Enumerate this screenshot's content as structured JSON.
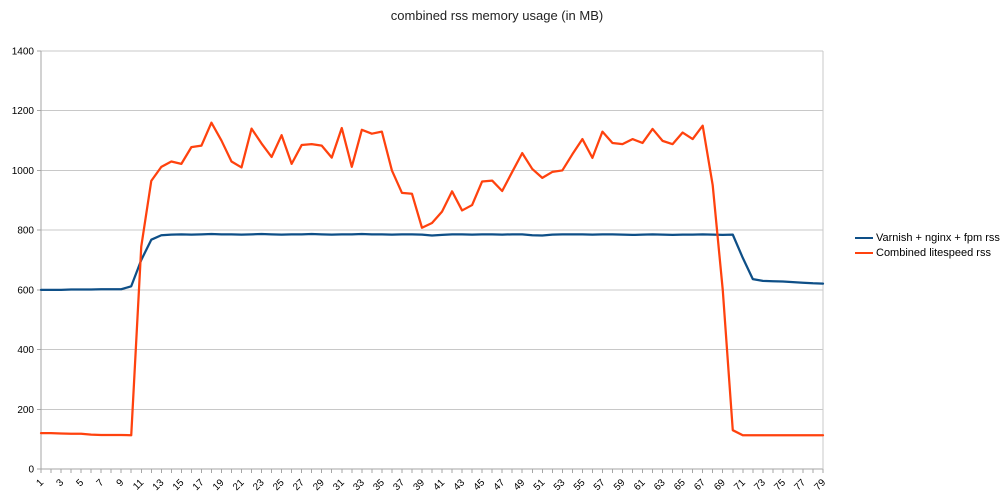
{
  "title": "combined rss memory usage (in MB)",
  "legend": {
    "items": [
      {
        "label": "Varnish + nginx + fpm rss",
        "color": "#0e4f87"
      },
      {
        "label": "Combined litespeed rss",
        "color": "#ff420e"
      }
    ]
  },
  "colors": {
    "background": "#ffffff",
    "grid": "#c8c8c8",
    "axis": "#a6a6a6",
    "tick_text": "#000000",
    "title_text": "#222222",
    "series_blue": "#0e4f87",
    "series_orange": "#ff420e"
  },
  "chart_data": {
    "type": "line",
    "title": "combined rss memory usage (in MB)",
    "xlabel": "",
    "ylabel": "",
    "ylim": [
      0,
      1400
    ],
    "y_tick_labels": [
      0,
      200,
      400,
      600,
      800,
      1000,
      1200,
      1400
    ],
    "grid": true,
    "legend_position": "right-middle",
    "x_tick_label_every": 2,
    "x": [
      1,
      2,
      3,
      4,
      5,
      6,
      7,
      8,
      9,
      10,
      11,
      12,
      13,
      14,
      15,
      16,
      17,
      18,
      19,
      20,
      21,
      22,
      23,
      24,
      25,
      26,
      27,
      28,
      29,
      30,
      31,
      32,
      33,
      34,
      35,
      36,
      37,
      38,
      39,
      40,
      41,
      42,
      43,
      44,
      45,
      46,
      47,
      48,
      49,
      50,
      51,
      52,
      53,
      54,
      55,
      56,
      57,
      58,
      59,
      60,
      61,
      62,
      63,
      64,
      65,
      66,
      67,
      68,
      69,
      70,
      71,
      72,
      73,
      74,
      75,
      76,
      77,
      78,
      79
    ],
    "series": [
      {
        "name": "Varnish + nginx + fpm rss",
        "color": "#0e4f87",
        "values": [
          600,
          600,
          600,
          601,
          601,
          601,
          602,
          602,
          602,
          612,
          700,
          768,
          783,
          785,
          786,
          785,
          786,
          787,
          786,
          786,
          785,
          786,
          787,
          786,
          785,
          786,
          786,
          787,
          786,
          785,
          786,
          786,
          787,
          786,
          786,
          785,
          786,
          786,
          785,
          782,
          784,
          786,
          786,
          785,
          786,
          786,
          785,
          786,
          786,
          783,
          782,
          785,
          786,
          786,
          786,
          785,
          786,
          786,
          785,
          784,
          785,
          786,
          785,
          784,
          785,
          785,
          786,
          785,
          784,
          785,
          707,
          636,
          630,
          629,
          628,
          626,
          624,
          622,
          621
        ]
      },
      {
        "name": "Combined litespeed rss",
        "color": "#ff420e",
        "values": [
          120,
          120,
          119,
          118,
          118,
          115,
          114,
          114,
          114,
          113,
          745,
          965,
          1012,
          1030,
          1022,
          1078,
          1083,
          1160,
          1100,
          1030,
          1010,
          1140,
          1090,
          1045,
          1118,
          1022,
          1085,
          1088,
          1083,
          1043,
          1142,
          1012,
          1136,
          1123,
          1130,
          1000,
          925,
          922,
          808,
          824,
          862,
          930,
          866,
          884,
          963,
          966,
          931,
          995,
          1058,
          1005,
          975,
          995,
          1000,
          1054,
          1105,
          1042,
          1130,
          1092,
          1088,
          1105,
          1092,
          1139,
          1099,
          1088,
          1127,
          1105,
          1150,
          950,
          600,
          130,
          113,
          113,
          113,
          113,
          113,
          113,
          113,
          113,
          113
        ]
      }
    ]
  }
}
